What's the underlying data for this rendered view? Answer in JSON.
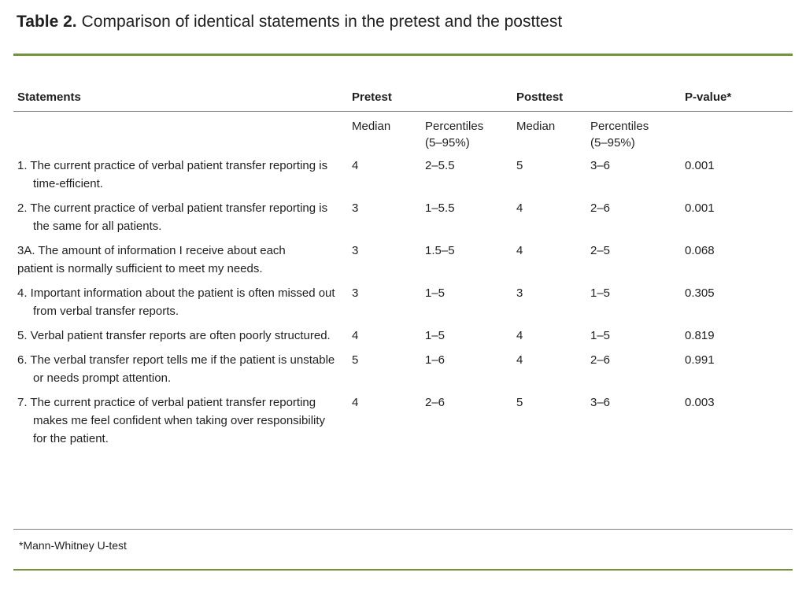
{
  "title": {
    "label": "Table 2.",
    "text": "Comparison of identical statements in the pretest and the posttest"
  },
  "table": {
    "headers": {
      "statements": "Statements",
      "pretest": "Pretest",
      "posttest": "Posttest",
      "p_value": "P-value*"
    },
    "subheaders": {
      "median": "Median",
      "percentiles": "Percentiles (5–95%)"
    },
    "rows": [
      {
        "statement": "1. The current practice of verbal patient transfer reporting is time-efficient.",
        "pretest_median": "4",
        "pretest_percentiles": "2–5.5",
        "posttest_median": "5",
        "posttest_percentiles": "3–6",
        "p_value": "0.001"
      },
      {
        "statement": "2. The current practice of verbal patient transfer reporting is the same for all patients.",
        "pretest_median": "3",
        "pretest_percentiles": "1–5.5",
        "posttest_median": "4",
        "posttest_percentiles": "2–6",
        "p_value": "0.001"
      },
      {
        "statement": "3A. The amount of information I receive about each patient is normally sufficient to meet my needs.",
        "pretest_median": "3",
        "pretest_percentiles": "1.5–5",
        "posttest_median": "4",
        "posttest_percentiles": "2–5",
        "p_value": "0.068"
      },
      {
        "statement": "4. Important information about the patient is often missed out from verbal transfer reports.",
        "pretest_median": "3",
        "pretest_percentiles": "1–5",
        "posttest_median": "3",
        "posttest_percentiles": "1–5",
        "p_value": "0.305"
      },
      {
        "statement": "5. Verbal patient transfer reports are often poorly structured.",
        "pretest_median": "4",
        "pretest_percentiles": "1–5",
        "posttest_median": "4",
        "posttest_percentiles": "1–5",
        "p_value": "0.819"
      },
      {
        "statement": "6. The verbal transfer report tells me if the patient is unstable or needs prompt attention.",
        "pretest_median": "5",
        "pretest_percentiles": "1–6",
        "posttest_median": "4",
        "posttest_percentiles": "2–6",
        "p_value": "0.991"
      },
      {
        "statement": "7. The current practice of verbal patient transfer reporting makes me feel confident when taking over responsibility for the patient.",
        "pretest_median": "4",
        "pretest_percentiles": "2–6",
        "posttest_median": "5",
        "posttest_percentiles": "3–6",
        "p_value": "0.003"
      }
    ]
  },
  "footnote": "*Mann-Whitney U-test",
  "colors": {
    "accent_green": "#76923c",
    "rule_gray": "#7f7f7f",
    "text": "#1f1f1f"
  }
}
